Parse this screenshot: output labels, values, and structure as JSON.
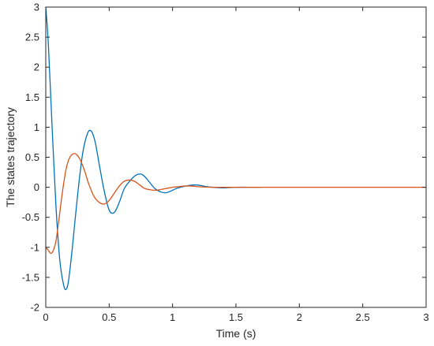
{
  "chart_data": {
    "type": "line",
    "title": "",
    "xlabel": "Time (s)",
    "ylabel": "The states trajectory",
    "xlim": [
      0,
      3
    ],
    "ylim": [
      -2,
      3
    ],
    "xticks": [
      0,
      0.5,
      1,
      1.5,
      2,
      2.5,
      3
    ],
    "yticks": [
      -2,
      -1.5,
      -1,
      -0.5,
      0,
      0.5,
      1,
      1.5,
      2,
      2.5,
      3
    ],
    "grid": false,
    "legend": false,
    "series": [
      {
        "color": "#0072BD",
        "x": [
          0,
          0.02,
          0.05,
          0.08,
          0.11,
          0.14,
          0.16,
          0.18,
          0.21,
          0.25,
          0.29,
          0.33,
          0.36,
          0.39,
          0.42,
          0.46,
          0.5,
          0.54,
          0.58,
          0.62,
          0.67,
          0.71,
          0.75,
          0.78,
          0.82,
          0.86,
          0.91,
          0.95,
          0.99,
          1.03,
          1.08,
          1.13,
          1.18,
          1.22,
          1.27,
          1.32,
          1.4,
          1.5,
          1.6,
          1.7
        ],
        "y": [
          3.0,
          2.4,
          1.0,
          -0.3,
          -1.2,
          -1.62,
          -1.7,
          -1.55,
          -1.0,
          -0.15,
          0.55,
          0.9,
          0.93,
          0.75,
          0.4,
          -0.05,
          -0.38,
          -0.42,
          -0.25,
          -0.02,
          0.12,
          0.2,
          0.22,
          0.18,
          0.08,
          -0.02,
          -0.08,
          -0.09,
          -0.06,
          -0.02,
          0.01,
          0.03,
          0.04,
          0.03,
          0.01,
          0.0,
          -0.01,
          0.0,
          0.0,
          0.0
        ]
      },
      {
        "color": "#D95319",
        "x": [
          0,
          0.02,
          0.04,
          0.06,
          0.08,
          0.1,
          0.13,
          0.16,
          0.19,
          0.22,
          0.24,
          0.26,
          0.28,
          0.31,
          0.34,
          0.38,
          0.42,
          0.46,
          0.5,
          0.54,
          0.58,
          0.62,
          0.66,
          0.7,
          0.74,
          0.78,
          0.82,
          0.86,
          0.9,
          0.95,
          1.0,
          1.05,
          1.1,
          1.15,
          1.2,
          1.3,
          1.4,
          1.5,
          1.7,
          2.0,
          2.5,
          3.0
        ],
        "y": [
          -1.0,
          -1.05,
          -1.1,
          -1.05,
          -0.9,
          -0.6,
          -0.1,
          0.3,
          0.5,
          0.56,
          0.55,
          0.5,
          0.42,
          0.25,
          0.05,
          -0.15,
          -0.25,
          -0.28,
          -0.22,
          -0.1,
          0.02,
          0.1,
          0.12,
          0.1,
          0.04,
          -0.02,
          -0.04,
          -0.05,
          -0.04,
          -0.02,
          0.0,
          0.01,
          0.02,
          0.02,
          0.01,
          0.0,
          0.0,
          0.0,
          0.0,
          0.0,
          0.0,
          0.0
        ]
      }
    ]
  }
}
